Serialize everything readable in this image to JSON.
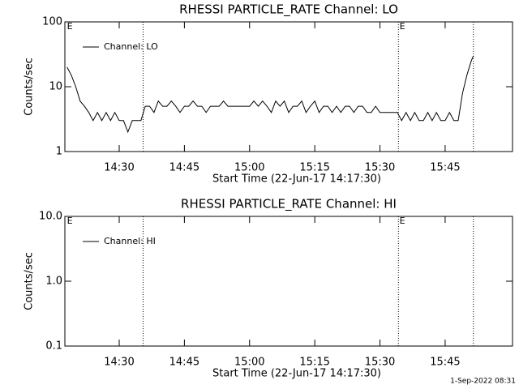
{
  "chart_data": [
    {
      "type": "line",
      "title": "RHESSI PARTICLE_RATE Channel: LO",
      "xlabel": "Start Time (22-Jun-17 14:17:30)",
      "ylabel": "Counts/sec",
      "log_y": true,
      "legend": "upper left",
      "color": "#000000",
      "xlim": [
        "14:17:30",
        "16:00:30"
      ],
      "xticks": [
        "14:30",
        "14:45",
        "15:00",
        "15:15",
        "15:30",
        "15:45"
      ],
      "ylim": [
        1,
        100
      ],
      "yticks": [
        1,
        10,
        100
      ],
      "vlines": [
        "14:35:30",
        "15:34:15",
        "15:51:30"
      ],
      "markers": [
        {
          "x": "14:18:00",
          "label": "E"
        },
        {
          "x": "15:34:30",
          "label": "E"
        }
      ],
      "x": [
        "14:18",
        "14:19",
        "14:20",
        "14:21",
        "14:22",
        "14:23",
        "14:24",
        "14:25",
        "14:26",
        "14:27",
        "14:28",
        "14:29",
        "14:30",
        "14:31",
        "14:32",
        "14:33",
        "14:34",
        "14:35",
        "14:36",
        "14:37",
        "14:38",
        "14:39",
        "14:40",
        "14:41",
        "14:42",
        "14:43",
        "14:44",
        "14:45",
        "14:46",
        "14:47",
        "14:48",
        "14:49",
        "14:50",
        "14:51",
        "14:52",
        "14:53",
        "14:54",
        "14:55",
        "14:56",
        "14:57",
        "14:58",
        "14:59",
        "15:00",
        "15:01",
        "15:02",
        "15:03",
        "15:04",
        "15:05",
        "15:06",
        "15:07",
        "15:08",
        "15:09",
        "15:10",
        "15:11",
        "15:12",
        "15:13",
        "15:14",
        "15:15",
        "15:16",
        "15:17",
        "15:18",
        "15:19",
        "15:20",
        "15:21",
        "15:22",
        "15:23",
        "15:24",
        "15:25",
        "15:26",
        "15:27",
        "15:28",
        "15:29",
        "15:30",
        "15:31",
        "15:32",
        "15:33",
        "15:34",
        "15:35",
        "15:36",
        "15:37",
        "15:38",
        "15:39",
        "15:40",
        "15:41",
        "15:42",
        "15:43",
        "15:44",
        "15:45",
        "15:46",
        "15:47",
        "15:48",
        "15:49",
        "15:50",
        "15:51",
        "15:51:30"
      ],
      "series": [
        {
          "name": "Channel: LO",
          "values": [
            20,
            15,
            10,
            6,
            5,
            4,
            3,
            4,
            3,
            4,
            3,
            4,
            3,
            3,
            2,
            3,
            3,
            3,
            5,
            5,
            4,
            6,
            5,
            5,
            6,
            5,
            4,
            5,
            5,
            6,
            5,
            5,
            4,
            5,
            5,
            5,
            6,
            5,
            5,
            5,
            5,
            5,
            5,
            6,
            5,
            6,
            5,
            4,
            6,
            5,
            6,
            4,
            5,
            5,
            6,
            4,
            5,
            6,
            4,
            5,
            5,
            4,
            5,
            4,
            5,
            5,
            4,
            5,
            5,
            4,
            4,
            5,
            4,
            4,
            4,
            4,
            4,
            3,
            4,
            3,
            4,
            3,
            3,
            4,
            3,
            4,
            3,
            3,
            4,
            3,
            3,
            8,
            15,
            25,
            30
          ]
        }
      ]
    },
    {
      "type": "line",
      "title": "RHESSI PARTICLE_RATE Channel: HI",
      "xlabel": "Start Time (22-Jun-17 14:17:30)",
      "ylabel": "Counts/sec",
      "log_y": true,
      "legend": "upper left",
      "color": "#000000",
      "xlim": [
        "14:17:30",
        "16:00:30"
      ],
      "xticks": [
        "14:30",
        "14:45",
        "15:00",
        "15:15",
        "15:30",
        "15:45"
      ],
      "ylim": [
        0.1,
        10
      ],
      "yticks": [
        {
          "value": 0.1,
          "label": "0.1"
        },
        {
          "value": 1,
          "label": "1.0"
        },
        {
          "value": 10,
          "label": "10.0"
        }
      ],
      "vlines": [
        "14:35:30",
        "15:34:15",
        "15:51:30"
      ],
      "markers": [
        {
          "x": "14:18:00",
          "label": "E"
        },
        {
          "x": "15:34:30",
          "label": "E"
        }
      ],
      "x": [],
      "series": [
        {
          "name": "Channel: HI",
          "values": []
        }
      ]
    }
  ],
  "footer": "1-Sep-2022 08:31"
}
